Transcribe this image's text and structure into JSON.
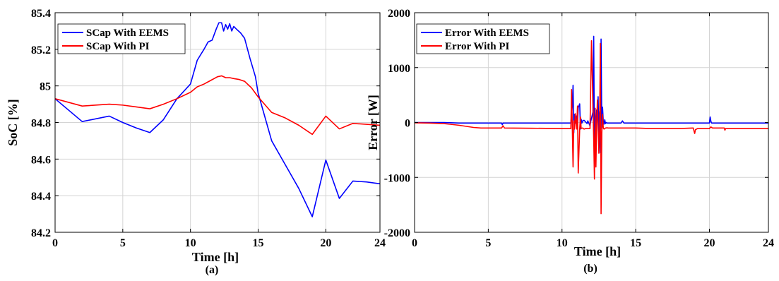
{
  "chart_data": [
    {
      "type": "line",
      "panel_label": "(a)",
      "xlabel": "Time [h]",
      "ylabel": "SoC [%]",
      "xlim": [
        0,
        24
      ],
      "ylim": [
        84.2,
        85.4
      ],
      "xticks": [
        0,
        5,
        10,
        15,
        20,
        24
      ],
      "yticks": [
        84.2,
        84.4,
        84.6,
        84.8,
        85,
        85.2,
        85.4
      ],
      "ytick_labels": [
        "84.2",
        "84.4",
        "84.6",
        "84.8",
        "85",
        "85.2",
        "85.4"
      ],
      "grid": true,
      "legend_position": "top-left",
      "series": [
        {
          "name": "SCap With EEMS",
          "color": "#0000ff",
          "x": [
            0,
            2,
            4,
            5,
            6,
            7,
            8,
            9,
            10,
            10.5,
            11,
            11.3,
            11.6,
            11.9,
            12.1,
            12.3,
            12.45,
            12.6,
            12.75,
            12.9,
            13.05,
            13.2,
            13.4,
            13.7,
            14,
            14.4,
            14.8,
            15,
            16,
            17,
            18,
            19,
            20,
            21,
            22,
            23,
            24
          ],
          "y": [
            84.93,
            84.805,
            84.835,
            84.8,
            84.77,
            84.745,
            84.815,
            84.93,
            85.01,
            85.14,
            85.2,
            85.24,
            85.25,
            85.31,
            85.345,
            85.345,
            85.3,
            85.335,
            85.31,
            85.34,
            85.3,
            85.325,
            85.31,
            85.29,
            85.26,
            85.15,
            85.05,
            84.96,
            84.7,
            84.57,
            84.44,
            84.285,
            84.595,
            84.385,
            84.48,
            84.475,
            84.465
          ]
        },
        {
          "name": "SCap With PI",
          "color": "#ff0000",
          "x": [
            0,
            2,
            4,
            5,
            6,
            7,
            8,
            9,
            10,
            10.5,
            11,
            11.5,
            12,
            12.3,
            12.6,
            12.9,
            13.2,
            13.6,
            14,
            14.5,
            15,
            16,
            17,
            18,
            19,
            20,
            21,
            22,
            23,
            24
          ],
          "y": [
            84.93,
            84.89,
            84.9,
            84.895,
            84.885,
            84.875,
            84.9,
            84.93,
            84.965,
            84.995,
            85.01,
            85.03,
            85.05,
            85.055,
            85.045,
            85.045,
            85.04,
            85.035,
            85.025,
            84.99,
            84.94,
            84.855,
            84.825,
            84.785,
            84.735,
            84.835,
            84.765,
            84.795,
            84.79,
            84.785
          ]
        }
      ]
    },
    {
      "type": "line",
      "panel_label": "(b)",
      "xlabel": "Time [h]",
      "ylabel": "Error [W]",
      "xlim": [
        0,
        24
      ],
      "ylim": [
        -2000,
        2000
      ],
      "xticks": [
        0,
        5,
        10,
        15,
        20,
        24
      ],
      "yticks": [
        -2000,
        -1000,
        0,
        1000,
        2000
      ],
      "ytick_labels": [
        "-2000",
        "-1000",
        "0",
        "1000",
        "2000"
      ],
      "grid": true,
      "legend_position": "top-left",
      "series": [
        {
          "name": "Error With EEMS",
          "color": "#0000ff",
          "x": [
            0,
            2,
            3,
            5.9,
            5.95,
            6,
            10,
            10.6,
            10.7,
            10.75,
            10.8,
            10.85,
            10.9,
            11,
            11.05,
            11.1,
            11.2,
            11.25,
            11.3,
            11.35,
            11.4,
            11.5,
            11.7,
            11.75,
            11.9,
            11.95,
            12.1,
            12.15,
            12.2,
            12.25,
            12.3,
            12.35,
            12.4,
            12.45,
            12.5,
            12.55,
            12.6,
            12.65,
            12.7,
            12.75,
            12.8,
            12.85,
            12.9,
            12.95,
            13,
            13.05,
            13.15,
            14,
            14.1,
            14.2,
            16,
            18,
            19,
            20,
            20.05,
            20.1,
            20.15,
            20.5,
            21,
            22,
            23,
            24
          ],
          "y": [
            0,
            0,
            -10,
            -10,
            -40,
            -10,
            -10,
            -10,
            300,
            680,
            -190,
            150,
            -10,
            120,
            -50,
            270,
            340,
            -120,
            60,
            -10,
            30,
            40,
            -20,
            30,
            -60,
            20,
            190,
            1570,
            -420,
            210,
            -250,
            230,
            100,
            470,
            -280,
            200,
            -550,
            1520,
            -110,
            280,
            30,
            -30,
            50,
            -20,
            0,
            -10,
            -10,
            -10,
            30,
            -10,
            -10,
            -10,
            -10,
            -10,
            100,
            20,
            -10,
            -10,
            -10,
            -10,
            -10,
            -10
          ]
        },
        {
          "name": "Error With PI",
          "color": "#ff0000",
          "x": [
            0,
            1,
            2,
            3,
            4,
            4.5,
            5,
            5.9,
            6,
            6.1,
            8,
            10,
            10.6,
            10.65,
            10.7,
            10.75,
            10.8,
            10.85,
            10.9,
            11,
            11.05,
            11.1,
            11.2,
            11.25,
            11.3,
            11.4,
            11.5,
            11.6,
            11.9,
            12,
            12.15,
            12.2,
            12.25,
            12.3,
            12.35,
            12.4,
            12.5,
            12.55,
            12.6,
            12.65,
            12.7,
            12.75,
            12.8,
            12.85,
            12.9,
            12.95,
            13,
            13.05,
            13.1,
            13.2,
            14,
            15,
            16,
            18,
            18.9,
            19,
            19.05,
            19.2,
            20,
            20.1,
            20.2,
            21,
            21.05,
            21.1,
            22,
            24
          ],
          "y": [
            -5,
            -10,
            -20,
            -50,
            -90,
            -100,
            -100,
            -100,
            -60,
            -100,
            -105,
            -110,
            -110,
            600,
            -110,
            -810,
            30,
            -120,
            160,
            -120,
            300,
            -920,
            -120,
            100,
            -110,
            -100,
            -120,
            -110,
            -110,
            1490,
            -300,
            -1030,
            260,
            -810,
            -60,
            410,
            -560,
            -140,
            1440,
            -1660,
            -200,
            150,
            -100,
            -120,
            -110,
            -100,
            -100,
            -95,
            -100,
            -100,
            -100,
            -100,
            -110,
            -110,
            -100,
            -200,
            -130,
            -110,
            -110,
            -80,
            -100,
            -100,
            -140,
            -110,
            -110,
            -110
          ]
        }
      ]
    }
  ]
}
